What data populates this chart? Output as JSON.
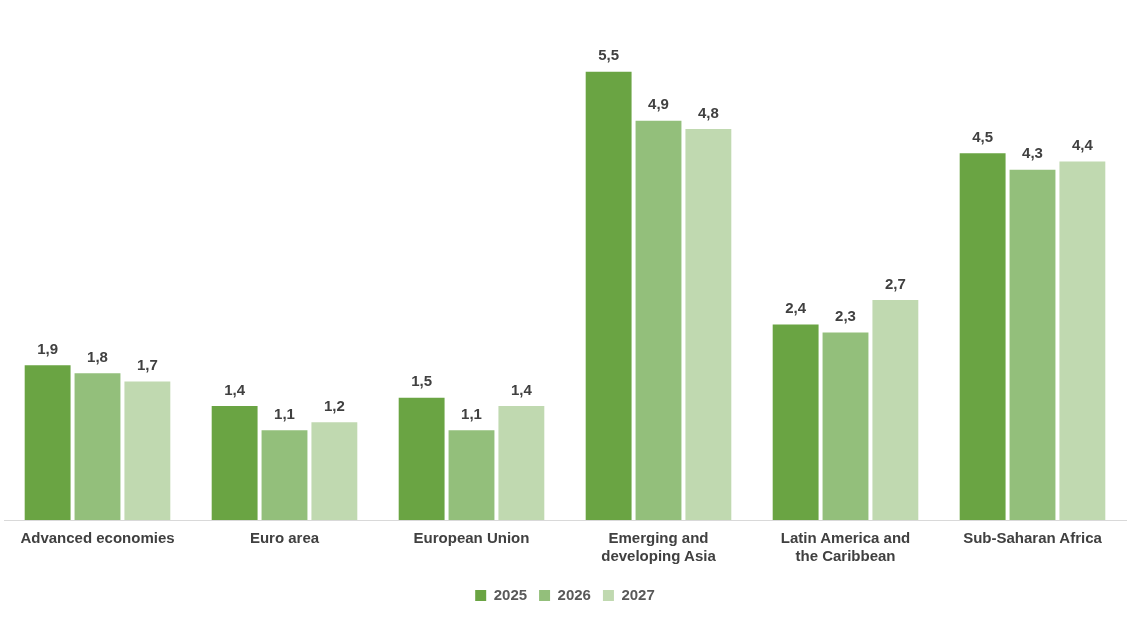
{
  "chart_data": {
    "type": "bar",
    "categories": [
      "Advanced economies",
      "Euro area",
      "European Union",
      "Emerging and developing Asia",
      "Latin America and the Caribbean",
      "Sub-Saharan Africa"
    ],
    "series": [
      {
        "name": "2025",
        "color": "#6aa443",
        "values": [
          1.9,
          1.4,
          1.5,
          5.5,
          2.4,
          4.5
        ],
        "value_labels": [
          "1,9",
          "1,4",
          "1,5",
          "5,5",
          "2,4",
          "4,5"
        ]
      },
      {
        "name": "2026",
        "color": "#93bf7b",
        "values": [
          1.8,
          1.1,
          1.1,
          4.9,
          2.3,
          4.3
        ],
        "value_labels": [
          "1,8",
          "1,1",
          "1,1",
          "4,9",
          "2,3",
          "4,3"
        ]
      },
      {
        "name": "2027",
        "color": "#c0d9b0",
        "values": [
          1.7,
          1.2,
          1.4,
          4.8,
          2.7,
          4.4
        ],
        "value_labels": [
          "1,7",
          "1,2",
          "1,4",
          "4,8",
          "2,7",
          "4,4"
        ]
      }
    ],
    "grid": false,
    "legend": "bottom"
  }
}
